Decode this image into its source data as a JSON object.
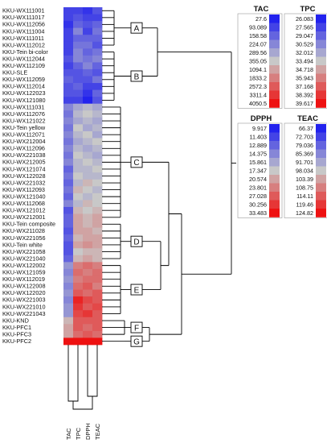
{
  "chart_data": {
    "type": "heatmap",
    "columns": [
      "TAC",
      "TPC",
      "DPPH",
      "TEAC"
    ],
    "rows": [
      {
        "label": "KKU-WX111001",
        "values": [
          0.1,
          0.1,
          0.05,
          0.15
        ]
      },
      {
        "label": "KKU-WX111017",
        "values": [
          0.1,
          0.15,
          0.1,
          0.1
        ]
      },
      {
        "label": "KKU-WX112056",
        "values": [
          0.05,
          0.2,
          0.15,
          0.2
        ]
      },
      {
        "label": "KKU-WX111004",
        "values": [
          0.1,
          0.3,
          0.1,
          0.25
        ]
      },
      {
        "label": "KKU-WX111011",
        "values": [
          0.1,
          0.2,
          0.2,
          0.2
        ]
      },
      {
        "label": "KKU-WX112012",
        "values": [
          0.1,
          0.25,
          0.25,
          0.15
        ]
      },
      {
        "label": "KKU-Tein bi-color",
        "values": [
          0.1,
          0.3,
          0.2,
          0.25
        ]
      },
      {
        "label": "KKU-WX112044",
        "values": [
          0.15,
          0.3,
          0.25,
          0.3
        ]
      },
      {
        "label": "KKU-WX112109",
        "values": [
          0.1,
          0.2,
          0.3,
          0.2
        ]
      },
      {
        "label": "KKU-SLE",
        "values": [
          0.15,
          0.15,
          0.2,
          0.15
        ]
      },
      {
        "label": "KKU-WX112059",
        "values": [
          0.2,
          0.15,
          0.15,
          0.25
        ]
      },
      {
        "label": "KKU-WX112014",
        "values": [
          0.15,
          0.2,
          0.1,
          0.1
        ]
      },
      {
        "label": "KKU-WX122023",
        "values": [
          0.15,
          0.15,
          0.05,
          0.2
        ]
      },
      {
        "label": "KKU-WX121080",
        "values": [
          0.1,
          0.1,
          0.0,
          0.15
        ]
      },
      {
        "label": "KKU-WX111031",
        "values": [
          0.3,
          0.4,
          0.45,
          0.4
        ]
      },
      {
        "label": "KKU-WX112076",
        "values": [
          0.25,
          0.45,
          0.5,
          0.45
        ]
      },
      {
        "label": "KKU-WX121022",
        "values": [
          0.3,
          0.4,
          0.45,
          0.4
        ]
      },
      {
        "label": "KKU-Tein yellow",
        "values": [
          0.25,
          0.5,
          0.4,
          0.45
        ]
      },
      {
        "label": "KKU-WX112071",
        "values": [
          0.3,
          0.45,
          0.5,
          0.4
        ]
      },
      {
        "label": "KKU-WX212004",
        "values": [
          0.25,
          0.4,
          0.45,
          0.5
        ]
      },
      {
        "label": "KKU-WX112096",
        "values": [
          0.3,
          0.45,
          0.4,
          0.45
        ]
      },
      {
        "label": "KKU-WX221038",
        "values": [
          0.25,
          0.5,
          0.45,
          0.4
        ]
      },
      {
        "label": "KKU-WX212005",
        "values": [
          0.3,
          0.45,
          0.5,
          0.45
        ]
      },
      {
        "label": "KKU-WX121074",
        "values": [
          0.2,
          0.45,
          0.45,
          0.5
        ]
      },
      {
        "label": "KKU-WX122028",
        "values": [
          0.25,
          0.5,
          0.45,
          0.45
        ]
      },
      {
        "label": "KKU-WX221032",
        "values": [
          0.2,
          0.45,
          0.55,
          0.5
        ]
      },
      {
        "label": "KKU-WX112093",
        "values": [
          0.25,
          0.55,
          0.5,
          0.45
        ]
      },
      {
        "label": "KKU-WX121040",
        "values": [
          0.2,
          0.5,
          0.45,
          0.5
        ]
      },
      {
        "label": "KKU-WX112068",
        "values": [
          0.3,
          0.45,
          0.55,
          0.5
        ]
      },
      {
        "label": "KKU-WX121012",
        "values": [
          0.15,
          0.55,
          0.5,
          0.55
        ]
      },
      {
        "label": "KKU-WX212001",
        "values": [
          0.2,
          0.6,
          0.55,
          0.6
        ]
      },
      {
        "label": "KKU-Tein composite",
        "values": [
          0.2,
          0.6,
          0.55,
          0.6
        ]
      },
      {
        "label": "KKU-WX211028",
        "values": [
          0.15,
          0.6,
          0.6,
          0.55
        ]
      },
      {
        "label": "KKU-WX221056",
        "values": [
          0.2,
          0.55,
          0.6,
          0.6
        ]
      },
      {
        "label": "KKU-Tein white",
        "values": [
          0.15,
          0.6,
          0.65,
          0.6
        ]
      },
      {
        "label": "KKU-WX221058",
        "values": [
          0.15,
          0.5,
          0.55,
          0.55
        ]
      },
      {
        "label": "KKU-WX221040",
        "values": [
          0.2,
          0.55,
          0.6,
          0.55
        ]
      },
      {
        "label": "KKU-WX122002",
        "values": [
          0.35,
          0.7,
          0.75,
          0.7
        ]
      },
      {
        "label": "KKU-WX121059",
        "values": [
          0.3,
          0.75,
          0.7,
          0.75
        ]
      },
      {
        "label": "KKU-WX112019",
        "values": [
          0.35,
          0.7,
          0.75,
          0.75
        ]
      },
      {
        "label": "KKU-WX122008",
        "values": [
          0.3,
          0.75,
          0.8,
          0.7
        ]
      },
      {
        "label": "KKU-WX122020",
        "values": [
          0.35,
          0.8,
          0.75,
          0.8
        ]
      },
      {
        "label": "KKU-WX221003",
        "values": [
          0.3,
          0.95,
          0.85,
          0.8
        ]
      },
      {
        "label": "KKU-WX221010",
        "values": [
          0.35,
          0.9,
          0.8,
          0.85
        ]
      },
      {
        "label": "KKU-WX221043",
        "values": [
          0.35,
          0.85,
          0.9,
          0.8
        ]
      },
      {
        "label": "KKU-KND",
        "values": [
          0.55,
          0.8,
          0.8,
          0.8
        ]
      },
      {
        "label": "KKU-PFC1",
        "values": [
          0.6,
          0.8,
          0.75,
          0.8
        ]
      },
      {
        "label": "KKU-PFC3",
        "values": [
          0.6,
          0.75,
          0.8,
          0.75
        ]
      },
      {
        "label": "KKU-PFC2",
        "values": [
          1.0,
          1.0,
          1.0,
          1.0
        ]
      }
    ],
    "clusters": [
      {
        "label": "A",
        "from": 0,
        "to": 5
      },
      {
        "label": "B",
        "from": 6,
        "to": 13
      },
      {
        "label": "C",
        "from": 14,
        "to": 30
      },
      {
        "label": "D",
        "from": 31,
        "to": 36
      },
      {
        "label": "E",
        "from": 37,
        "to": 44
      },
      {
        "label": "F",
        "from": 45,
        "to": 47
      },
      {
        "label": "G",
        "from": 48,
        "to": 48
      }
    ],
    "color_scale": {
      "low": "#2222ee",
      "mid": "#c8c8c8",
      "high": "#ee1111"
    },
    "legends": [
      {
        "title": "TAC",
        "values": [
          "27.6",
          "93.089",
          "158.58",
          "224.07",
          "289.56",
          "355.05",
          "1094.1",
          "1833.2",
          "2572.3",
          "3311.4",
          "4050.5"
        ]
      },
      {
        "title": "TPC",
        "values": [
          "26.083",
          "27.565",
          "29.047",
          "30.529",
          "32.012",
          "33.494",
          "34.718",
          "35.943",
          "37.168",
          "38.392",
          "39.617"
        ]
      },
      {
        "title": "DPPH",
        "values": [
          "9.917",
          "11.403",
          "12.889",
          "14.375",
          "15.861",
          "17.347",
          "20.574",
          "23.801",
          "27.028",
          "30.256",
          "33.483"
        ]
      },
      {
        "title": "TEAC",
        "values": [
          "66.37",
          "72.703",
          "79.036",
          "85.369",
          "91.701",
          "98.034",
          "103.39",
          "108.75",
          "114.11",
          "119.46",
          "124.82"
        ]
      }
    ]
  }
}
